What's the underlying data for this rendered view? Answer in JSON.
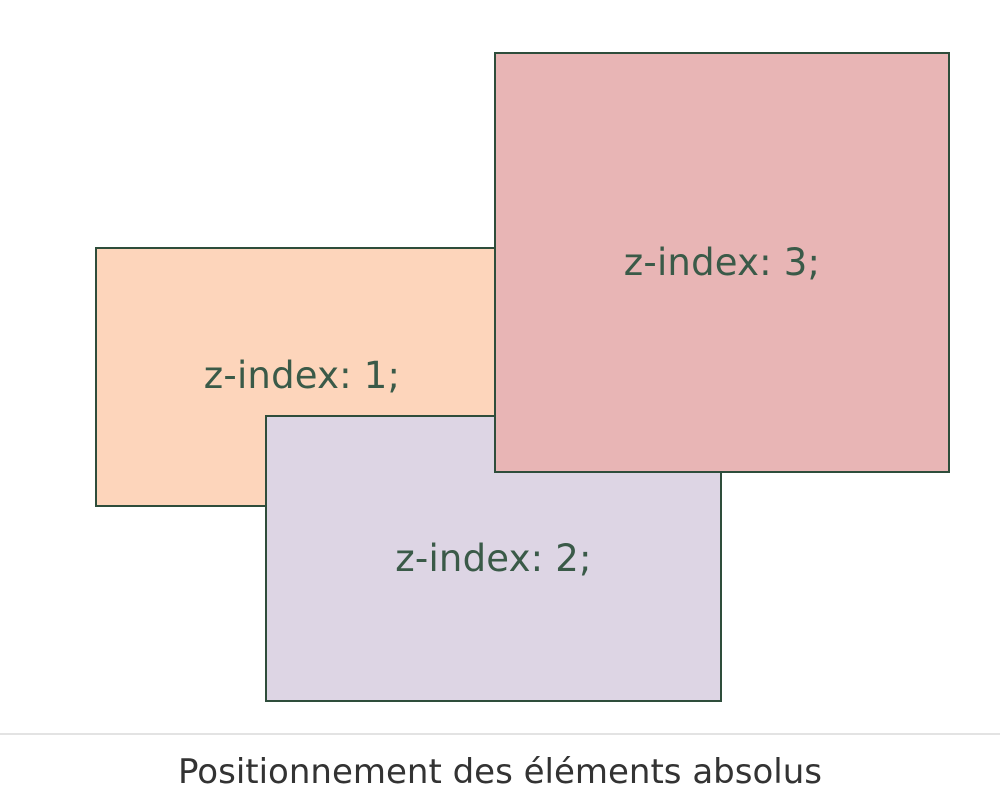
{
  "boxes": [
    {
      "label": "z-index: 1;",
      "color": "#fdd5bb",
      "z_index": 1
    },
    {
      "label": "z-index: 2;",
      "color": "#ddd5e4",
      "z_index": 2
    },
    {
      "label": "z-index: 3;",
      "color": "#e8b5b5",
      "z_index": 3
    }
  ],
  "border_color": "#2e4d3b",
  "caption": "Positionnement des éléments absolus"
}
